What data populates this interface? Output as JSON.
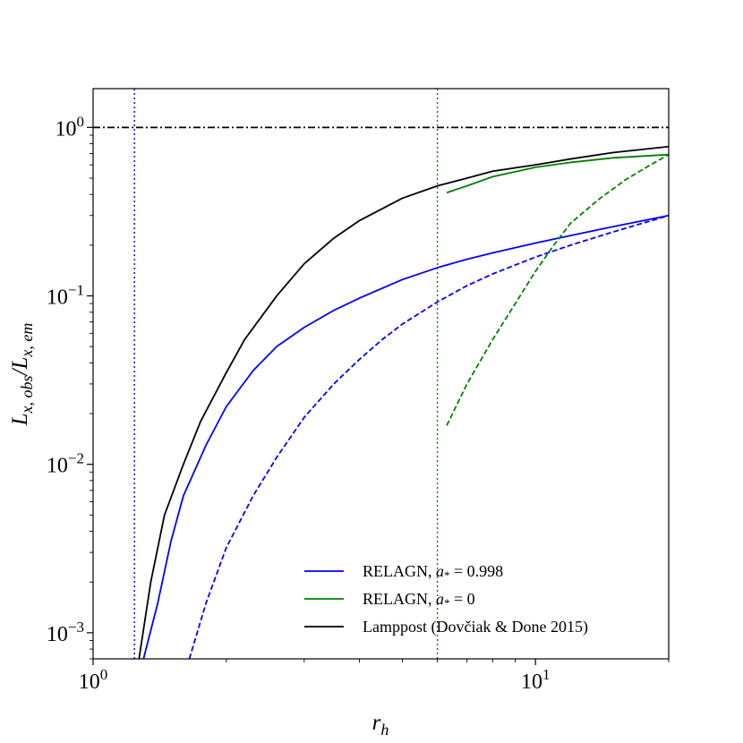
{
  "chart_data": {
    "type": "line",
    "title": "",
    "xlabel": "r_h",
    "ylabel": "L_{x, obs}/L_{x, em}",
    "xscale": "log",
    "yscale": "log",
    "xlim": [
      1.0,
      20.0
    ],
    "ylim": [
      0.0007,
      1.7
    ],
    "grid": false,
    "legend_position": "lower-right",
    "x_ticks": [
      {
        "value": 1,
        "base": "10",
        "exp": "0"
      },
      {
        "value": 10,
        "base": "10",
        "exp": "1"
      }
    ],
    "y_ticks": [
      {
        "value": 0.001,
        "base": "10",
        "exp": "−3"
      },
      {
        "value": 0.01,
        "base": "10",
        "exp": "−2"
      },
      {
        "value": 0.1,
        "base": "10",
        "exp": "−1"
      },
      {
        "value": 1,
        "base": "10",
        "exp": "0"
      }
    ],
    "series": [
      {
        "name": "RELAGN, a* = 0.998",
        "legend_parts": [
          "RELAGN, ",
          "a",
          "*",
          " = 0.998"
        ],
        "color": "#0000ff",
        "dash": "solid",
        "points": [
          [
            1.3,
            0.0007
          ],
          [
            1.4,
            0.0015
          ],
          [
            1.5,
            0.0035
          ],
          [
            1.6,
            0.0065
          ],
          [
            1.8,
            0.013
          ],
          [
            2.0,
            0.022
          ],
          [
            2.3,
            0.036
          ],
          [
            2.6,
            0.05
          ],
          [
            3.0,
            0.065
          ],
          [
            3.5,
            0.082
          ],
          [
            4.0,
            0.097
          ],
          [
            5.0,
            0.125
          ],
          [
            6.0,
            0.147
          ],
          [
            7.0,
            0.165
          ],
          [
            8.0,
            0.18
          ],
          [
            10.0,
            0.206
          ],
          [
            12.0,
            0.228
          ],
          [
            15.0,
            0.258
          ],
          [
            20.0,
            0.3
          ]
        ]
      },
      {
        "name": "",
        "color": "#0000ff",
        "dash": "dashed",
        "points": [
          [
            1.65,
            0.0007
          ],
          [
            1.8,
            0.0015
          ],
          [
            2.0,
            0.0032
          ],
          [
            2.3,
            0.0065
          ],
          [
            2.6,
            0.011
          ],
          [
            3.0,
            0.019
          ],
          [
            3.5,
            0.03
          ],
          [
            4.0,
            0.042
          ],
          [
            4.5,
            0.055
          ],
          [
            5.0,
            0.068
          ],
          [
            6.0,
            0.092
          ],
          [
            7.0,
            0.115
          ],
          [
            8.0,
            0.135
          ],
          [
            10.0,
            0.17
          ],
          [
            12.0,
            0.2
          ],
          [
            15.0,
            0.24
          ],
          [
            20.0,
            0.3
          ]
        ]
      },
      {
        "name": "RELAGN, a* = 0",
        "legend_parts": [
          "RELAGN, ",
          "a",
          "*",
          " = 0"
        ],
        "color": "#008000",
        "dash": "solid",
        "points": [
          [
            6.3,
            0.41
          ],
          [
            7.0,
            0.45
          ],
          [
            8.0,
            0.51
          ],
          [
            10.0,
            0.58
          ],
          [
            12.0,
            0.62
          ],
          [
            15.0,
            0.66
          ],
          [
            20.0,
            0.69
          ]
        ]
      },
      {
        "name": "",
        "color": "#008000",
        "dash": "dashed",
        "points": [
          [
            6.3,
            0.017
          ],
          [
            7.0,
            0.03
          ],
          [
            8.0,
            0.055
          ],
          [
            9.0,
            0.09
          ],
          [
            10.0,
            0.14
          ],
          [
            11.0,
            0.2
          ],
          [
            12.0,
            0.27
          ],
          [
            14.0,
            0.38
          ],
          [
            16.0,
            0.49
          ],
          [
            18.0,
            0.59
          ],
          [
            20.0,
            0.69
          ]
        ]
      },
      {
        "name": "Lamppost (Dovčiak & Done 2015)",
        "legend_parts": [
          "Lamppost (Dovčiak & Done 2015)"
        ],
        "color": "#000000",
        "dash": "solid",
        "points": [
          [
            1.27,
            0.0007
          ],
          [
            1.35,
            0.002
          ],
          [
            1.45,
            0.005
          ],
          [
            1.6,
            0.01
          ],
          [
            1.75,
            0.018
          ],
          [
            2.0,
            0.035
          ],
          [
            2.2,
            0.055
          ],
          [
            2.6,
            0.1
          ],
          [
            3.0,
            0.155
          ],
          [
            3.5,
            0.22
          ],
          [
            4.0,
            0.28
          ],
          [
            5.0,
            0.38
          ],
          [
            6.0,
            0.45
          ],
          [
            7.0,
            0.5
          ],
          [
            8.0,
            0.55
          ],
          [
            10.0,
            0.6
          ],
          [
            12.0,
            0.65
          ],
          [
            15.0,
            0.71
          ],
          [
            20.0,
            0.77
          ]
        ]
      },
      {
        "name": "",
        "color": "#000000",
        "dash": "dashdot",
        "points": [
          [
            1.0,
            1.0
          ],
          [
            20.0,
            1.0
          ]
        ]
      },
      {
        "name": "",
        "color": "#0000ff",
        "dash": "dotted",
        "points": [
          [
            1.24,
            0.0007
          ],
          [
            1.24,
            1.7
          ]
        ]
      },
      {
        "name": "",
        "color": "#008000",
        "dash": "dotted",
        "points": [
          [
            6.0,
            0.0007
          ],
          [
            6.0,
            1.7
          ]
        ]
      }
    ]
  }
}
